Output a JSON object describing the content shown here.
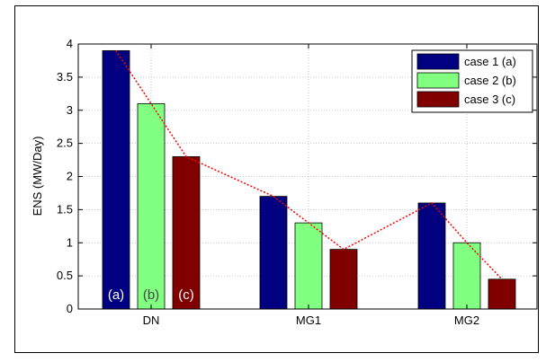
{
  "chart_data": {
    "type": "bar",
    "title": "",
    "xlabel": "",
    "ylabel": "ENS (MW/Day)",
    "ylim": [
      0,
      4
    ],
    "yticks": [
      0,
      0.5,
      1,
      1.5,
      2,
      2.5,
      3,
      3.5,
      4
    ],
    "ytick_labels": [
      "0",
      "0.5",
      "1",
      "1.5",
      "2",
      "2.5",
      "3",
      "3.5",
      "4"
    ],
    "categories": [
      "DN",
      "MG1",
      "MG2"
    ],
    "series": [
      {
        "name": "case 1 (a)",
        "color": "#000080",
        "values": [
          3.9,
          1.7,
          1.6
        ]
      },
      {
        "name": "case 2 (b)",
        "color": "#80ff80",
        "values": [
          3.1,
          1.3,
          1.0
        ]
      },
      {
        "name": "case 3 (c)",
        "color": "#800000",
        "values": [
          2.3,
          0.9,
          0.45
        ]
      }
    ],
    "bar_annotations": [
      "(a)",
      "(b)",
      "(c)"
    ],
    "trend_line": {
      "color": "#ff0000",
      "style": "dotted"
    },
    "grid": true,
    "legend": "top-right"
  }
}
